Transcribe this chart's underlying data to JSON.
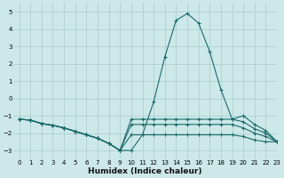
{
  "xlabel": "Humidex (Indice chaleur)",
  "xlim": [
    -0.5,
    23
  ],
  "ylim": [
    -3.5,
    5.5
  ],
  "yticks": [
    -3,
    -2,
    -1,
    0,
    1,
    2,
    3,
    4,
    5
  ],
  "xticks": [
    0,
    1,
    2,
    3,
    4,
    5,
    6,
    7,
    8,
    9,
    10,
    11,
    12,
    13,
    14,
    15,
    16,
    17,
    18,
    19,
    20,
    21,
    22,
    23
  ],
  "bg_color": "#cce8e8",
  "grid_color": "#aacccc",
  "line_color": "#1a6b6b",
  "lines": [
    {
      "x": [
        0,
        1,
        2,
        3,
        4,
        5,
        6,
        7,
        8,
        9,
        10,
        11,
        12,
        13,
        14,
        15,
        16,
        17,
        18,
        19,
        20,
        21,
        22,
        23
      ],
      "y": [
        -1.2,
        -1.25,
        -1.45,
        -1.55,
        -1.7,
        -1.9,
        -2.1,
        -2.3,
        -2.6,
        -3.0,
        -3.0,
        -2.1,
        -0.2,
        2.4,
        4.5,
        4.9,
        4.35,
        2.7,
        0.5,
        -1.2,
        -1.0,
        -1.5,
        -1.85,
        -2.5
      ]
    },
    {
      "x": [
        0,
        1,
        2,
        3,
        4,
        5,
        6,
        7,
        8,
        9,
        10,
        11,
        12,
        13,
        14,
        15,
        16,
        17,
        18,
        19,
        20,
        21,
        22,
        23
      ],
      "y": [
        -1.2,
        -1.25,
        -1.45,
        -1.55,
        -1.7,
        -1.9,
        -2.1,
        -2.3,
        -2.6,
        -3.0,
        -1.2,
        -1.2,
        -1.2,
        -1.2,
        -1.2,
        -1.2,
        -1.2,
        -1.2,
        -1.2,
        -1.2,
        -1.35,
        -1.75,
        -2.0,
        -2.5
      ]
    },
    {
      "x": [
        0,
        1,
        2,
        3,
        4,
        5,
        6,
        7,
        8,
        9,
        10,
        11,
        12,
        13,
        14,
        15,
        16,
        17,
        18,
        19,
        20,
        21,
        22,
        23
      ],
      "y": [
        -1.2,
        -1.25,
        -1.45,
        -1.55,
        -1.7,
        -1.9,
        -2.1,
        -2.3,
        -2.6,
        -3.0,
        -1.5,
        -1.5,
        -1.5,
        -1.5,
        -1.5,
        -1.5,
        -1.5,
        -1.5,
        -1.5,
        -1.5,
        -1.7,
        -2.0,
        -2.2,
        -2.5
      ]
    },
    {
      "x": [
        0,
        1,
        2,
        3,
        4,
        5,
        6,
        7,
        8,
        9,
        10,
        11,
        12,
        13,
        14,
        15,
        16,
        17,
        18,
        19,
        20,
        21,
        22,
        23
      ],
      "y": [
        -1.2,
        -1.25,
        -1.45,
        -1.55,
        -1.7,
        -1.9,
        -2.1,
        -2.3,
        -2.6,
        -3.0,
        -2.1,
        -2.1,
        -2.1,
        -2.1,
        -2.1,
        -2.1,
        -2.1,
        -2.1,
        -2.1,
        -2.1,
        -2.2,
        -2.4,
        -2.5,
        -2.5
      ]
    }
  ]
}
